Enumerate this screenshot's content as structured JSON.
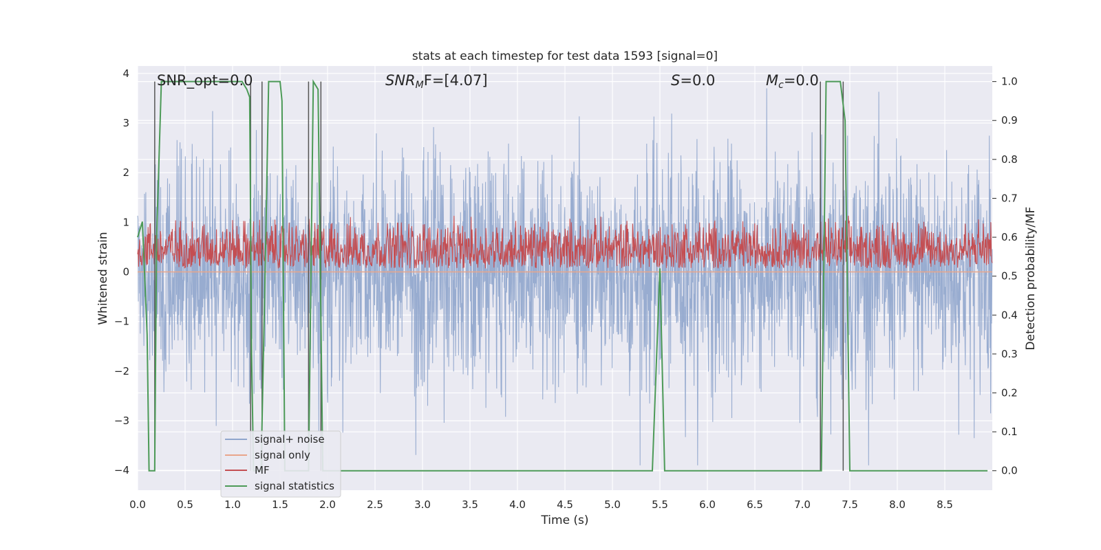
{
  "chart_data": {
    "type": "line",
    "title": "stats at each timestep for test data 1593 [signal=0]",
    "xlabel": "Time (s)",
    "ylabel": "Whitened strain",
    "ylabel_right": "Detection probability/MF",
    "xlim": [
      0.0,
      9.0
    ],
    "ylim": [
      -4.4,
      4.15
    ],
    "ylim_right": [
      -0.05,
      1.04
    ],
    "x_ticks": [
      0.0,
      0.5,
      1.0,
      1.5,
      2.0,
      2.5,
      3.0,
      3.5,
      4.0,
      4.5,
      5.0,
      5.5,
      6.0,
      6.5,
      7.0,
      7.5,
      8.0,
      8.5
    ],
    "x_tick_labels": [
      "0.0",
      "0.5",
      "1.0",
      "1.5",
      "2.0",
      "2.5",
      "3.0",
      "3.5",
      "4.0",
      "4.5",
      "5.0",
      "5.5",
      "6.0",
      "6.5",
      "7.0",
      "7.5",
      "8.0",
      "8.5"
    ],
    "y_ticks": [
      4,
      3,
      2,
      1,
      0,
      -1,
      -2,
      -3,
      -4
    ],
    "y_tick_labels": [
      "4",
      "3",
      "2",
      "1",
      "0",
      "−1",
      "−2",
      "−3",
      "−4"
    ],
    "y2_ticks": [
      1.0,
      0.9,
      0.8,
      0.7,
      0.6,
      0.5,
      0.4,
      0.3,
      0.2,
      0.1,
      0.0
    ],
    "y2_tick_labels": [
      "1.0",
      "0.9",
      "0.8",
      "0.7",
      "0.6",
      "0.5",
      "0.4",
      "0.3",
      "0.2",
      "0.1",
      "0.0"
    ],
    "grid": true,
    "legend_position": "lower-left",
    "annotations": {
      "snr_opt": "SNR_opt=0.0",
      "snr_mf_main": "SNR",
      "snr_mf_sub": "M",
      "snr_mf_rest": "F=[4.07]",
      "s_main": "S",
      "s_rest": "=0.0",
      "mc_main": "M",
      "mc_sub": "c",
      "mc_rest": "=0.0"
    },
    "series": [
      {
        "name": "signal+ noise",
        "color": "#8fa5cc",
        "axis": "left",
        "description_range": [
          -3.9,
          3.7
        ],
        "note": "dense whitened noise trace across 0-9 s"
      },
      {
        "name": "signal only",
        "color": "#e9a58a",
        "axis": "left",
        "values_constant": 0.0
      },
      {
        "name": "MF",
        "color": "#c44e52",
        "axis": "right",
        "range": [
          0.52,
          0.66
        ]
      },
      {
        "name": "signal statistics",
        "color": "#4c9a57",
        "axis": "right",
        "x": [
          0.0,
          0.05,
          0.1,
          0.12,
          0.15,
          0.18,
          0.2,
          0.25,
          0.28,
          1.1,
          1.15,
          1.18,
          1.2,
          1.22,
          1.25,
          1.3,
          1.35,
          1.38,
          1.4,
          1.5,
          1.52,
          1.55,
          1.6,
          1.7,
          1.8,
          1.85,
          1.9,
          1.95,
          2.0,
          5.42,
          5.5,
          5.55,
          7.2,
          7.25,
          7.4,
          7.45,
          7.5,
          8.95
        ],
        "y": [
          0.6,
          0.64,
          0.35,
          0.0,
          0.0,
          0.0,
          0.6,
          1.0,
          1.0,
          1.0,
          0.98,
          0.96,
          0.3,
          0.0,
          0.0,
          0.0,
          0.6,
          1.0,
          1.0,
          1.0,
          0.95,
          0.0,
          0.0,
          0.0,
          0.0,
          1.0,
          0.98,
          0.0,
          0.0,
          0.0,
          0.52,
          0.0,
          0.0,
          1.0,
          1.0,
          0.9,
          0.0,
          0.0
        ]
      }
    ],
    "detection_markers_x": [
      0.18,
      1.19,
      1.31,
      1.8,
      1.93,
      7.19,
      7.43
    ]
  },
  "legend": {
    "items": [
      {
        "label": "signal+ noise",
        "color": "#8fa5cc"
      },
      {
        "label": "signal only",
        "color": "#e9a58a"
      },
      {
        "label": "MF",
        "color": "#c44e52"
      },
      {
        "label": "signal statistics",
        "color": "#4c9a57"
      }
    ]
  },
  "colors": {
    "axes_bg": "#eaeaf2",
    "grid": "#ffffff",
    "noise": "#8fa5cc",
    "signal": "#e9a58a",
    "mf": "#c44e52",
    "stat": "#4c9a57",
    "marker": "#555555"
  }
}
